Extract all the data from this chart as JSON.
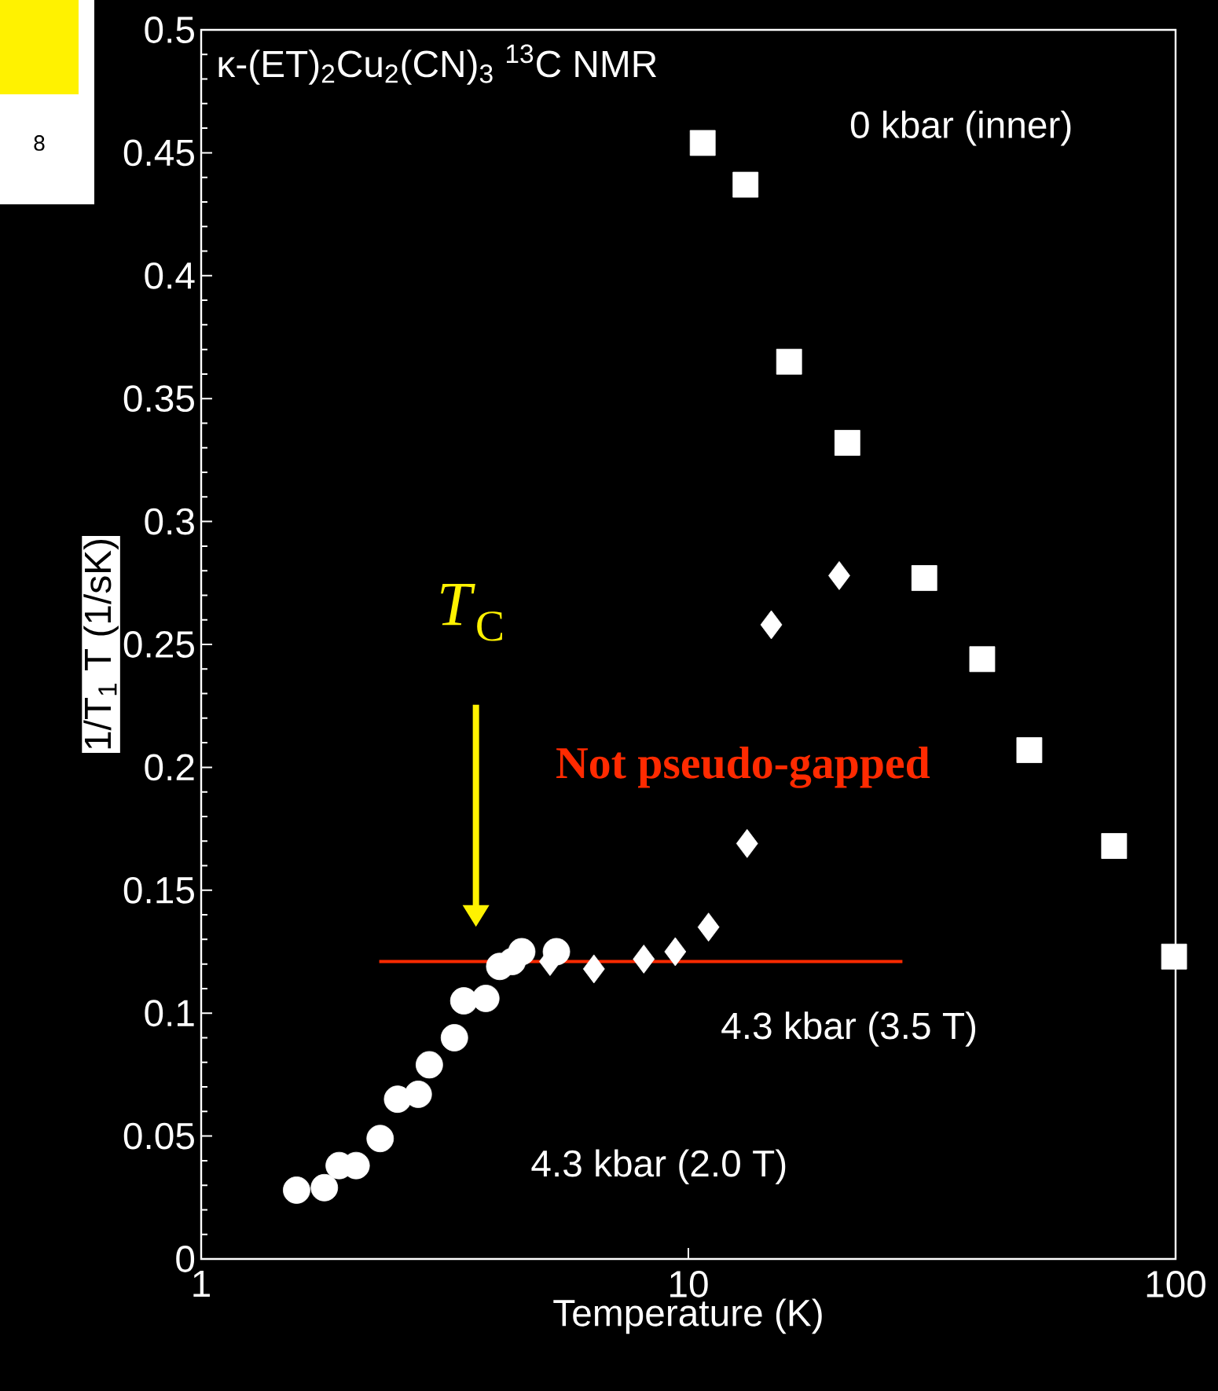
{
  "chart_data": {
    "type": "scatter",
    "title": "κ-(ET)$_{2}$Cu$_{2}$(CN)$_{3}$ $^{13}$C NMR",
    "xlabel": "Temperature (K)",
    "ylabel": "1/T$_{1}$ T (1/sK)",
    "log": "x",
    "xlim": [
      1,
      100
    ],
    "ylim": [
      0,
      0.5
    ],
    "xticks": [
      1,
      10,
      100
    ],
    "yticks": [
      0,
      0.05,
      0.1,
      0.15,
      0.2,
      0.25,
      0.3,
      0.35,
      0.4,
      0.45,
      0.5
    ],
    "series": [
      {
        "name": "0 kbar (inner)",
        "color": "#ffffff",
        "marker": "square",
        "x": [
          10.7,
          13.1,
          16.1,
          21.2,
          30.5,
          40.1,
          50.1,
          74.8,
          99.3
        ],
        "values": [
          0.454,
          0.437,
          0.365,
          0.332,
          0.277,
          0.244,
          0.207,
          0.168,
          0.123
        ]
      },
      {
        "name": "4.3 kbar (3.5 T)",
        "color": "#ffffff",
        "marker": "diamond",
        "x": [
          5.2,
          6.4,
          8.1,
          9.4,
          11.0,
          13.2,
          14.8,
          20.4
        ],
        "values": [
          0.121,
          0.118,
          0.122,
          0.125,
          0.135,
          0.169,
          0.258,
          0.278
        ]
      },
      {
        "name": "4.3 kbar (2.0 T)",
        "color": "#ffffff",
        "marker": "circle",
        "x": [
          1.57,
          1.79,
          1.92,
          2.08,
          2.33,
          2.53,
          2.79,
          2.94,
          3.31,
          3.46,
          3.84,
          4.1,
          4.35,
          4.55,
          5.36
        ],
        "values": [
          0.028,
          0.029,
          0.038,
          0.038,
          0.049,
          0.065,
          0.067,
          0.079,
          0.09,
          0.105,
          0.106,
          0.119,
          0.121,
          0.125,
          0.125
        ]
      },
      {
        "type": "line",
        "color": "#ff2a00",
        "x": [
          2.32,
          27.5
        ],
        "values": [
          0.121,
          0.121
        ]
      }
    ],
    "annotations": [
      "*T*$_{C}$",
      "Not pseudo-gapped",
      "8"
    ]
  }
}
